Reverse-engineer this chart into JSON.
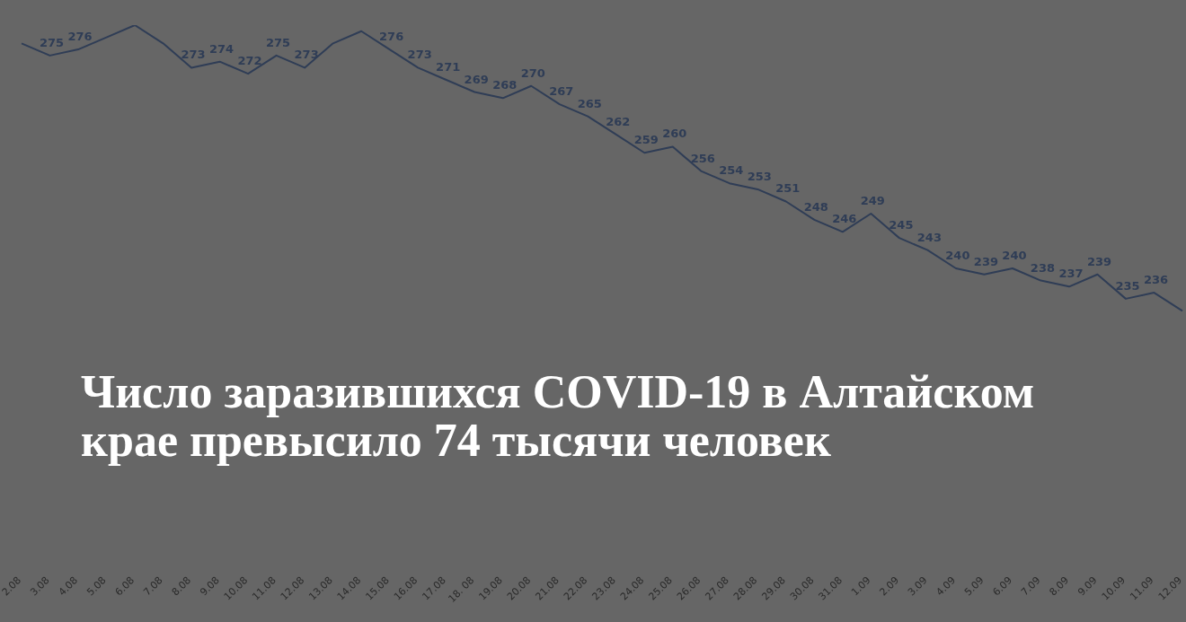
{
  "chart_data": {
    "type": "line",
    "title": "Число заразившихся COVID-19 в Алтайском крае превысило 74 тысячи человек",
    "categories": [
      "2.08",
      "3.08",
      "4.08",
      "5.08",
      "6.08",
      "7.08",
      "8.08",
      "9.08",
      "10.08",
      "11.08",
      "12.08",
      "13.08",
      "14.08",
      "15.08",
      "16.08",
      "17.08",
      "18. 08",
      "19.08",
      "20.08",
      "21.08",
      "22.08",
      "23.08",
      "24.08",
      "25.08",
      "26.08",
      "27.08",
      "28.08",
      "29.08",
      "30.08",
      "31.08",
      "1.09",
      "2.09",
      "3.09",
      "4.09",
      "5.09",
      "6.09",
      "7.09",
      "8.09",
      "9.09",
      "10.09",
      "11.09",
      "12.09"
    ],
    "series": [
      {
        "color": "#2f3d56",
        "values": [
          277,
          275,
          276,
          278,
          280,
          277,
          273,
          274,
          272,
          275,
          273,
          277,
          279,
          276,
          273,
          271,
          269,
          268,
          270,
          267,
          265,
          262,
          259,
          260,
          256,
          254,
          253,
          251,
          248,
          246,
          249,
          245,
          243,
          240,
          239,
          240,
          238,
          237,
          239,
          235,
          236,
          233
        ],
        "value_labels": [
          null,
          "275",
          "276",
          null,
          null,
          null,
          "273",
          "274",
          "272",
          "275",
          "273",
          null,
          null,
          "276",
          "273",
          "271",
          "269",
          "268",
          "270",
          "267",
          "265",
          "262",
          "259",
          "260",
          "256",
          "254",
          "253",
          "251",
          "248",
          "246",
          "249",
          "245",
          "243",
          "240",
          "239",
          "240",
          "238",
          "237",
          "239",
          "235",
          "236",
          null
        ]
      }
    ],
    "marker": "none",
    "line_style": "solid"
  }
}
